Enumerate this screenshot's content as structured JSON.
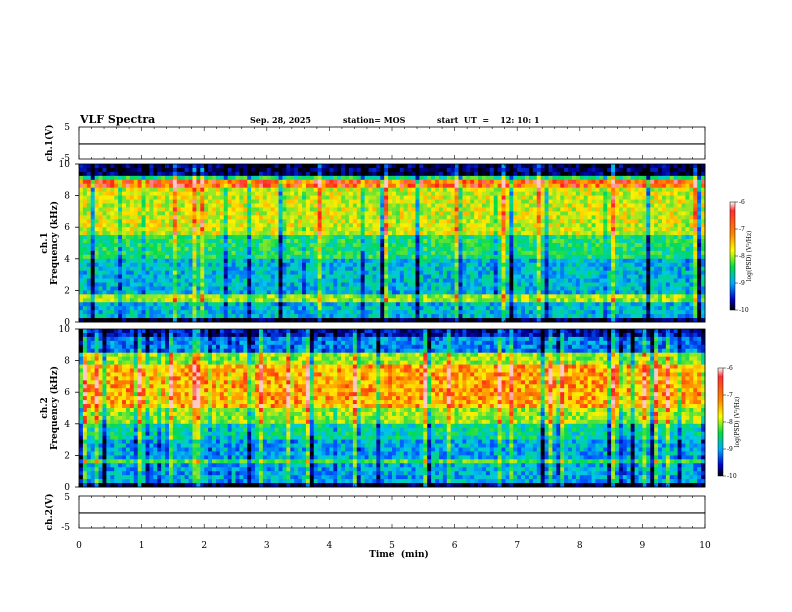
{
  "header": {
    "title": "VLF Spectra",
    "date": "Sep. 28, 2025",
    "station": "station= MOS",
    "start": "start  UT  =    12: 10: 1"
  },
  "colorbar": {
    "label": "log(PSD) (V²/Hz)",
    "ticks": [
      "-6",
      "-7",
      "-8",
      "-9",
      "-10"
    ]
  },
  "chart_data": [
    {
      "type": "line",
      "name": "ch1-voltage",
      "ylabel": "ch.1(V)",
      "ylim": [
        -5,
        5
      ],
      "yticks": [
        "5",
        "-5"
      ],
      "xlim": [
        0,
        10
      ],
      "series": [
        {
          "name": "ch.1",
          "value": -0.3
        }
      ]
    },
    {
      "type": "heatmap",
      "name": "ch1-spectrogram",
      "ylabel": "ch.1\nFrequency (kHz)",
      "ylim": [
        0,
        10
      ],
      "yticks": [
        "0",
        "2",
        "4",
        "6",
        "8",
        "10"
      ],
      "xlim": [
        0,
        10
      ],
      "clim": [
        -10,
        -6
      ],
      "colorbar_label": "log(PSD) (V²/Hz)",
      "description_bands": "green background, red-yellow emission 6–9 kHz, strong line near 8.7 kHz and 1.5 kHz"
    },
    {
      "type": "heatmap",
      "name": "ch2-spectrogram",
      "ylabel": "ch.2\nFrequency (kHz)",
      "ylim": [
        0,
        10
      ],
      "yticks": [
        "0",
        "2",
        "4",
        "6",
        "8",
        "10"
      ],
      "xlim": [
        0,
        10
      ],
      "clim": [
        -10,
        -6
      ],
      "colorbar_label": "log(PSD) (V²/Hz)"
    },
    {
      "type": "line",
      "name": "ch2-voltage",
      "ylabel": "ch.2(V)",
      "ylim": [
        -5,
        5
      ],
      "yticks": [
        "5",
        "-5"
      ],
      "xlim": [
        0,
        10
      ],
      "xticks": [
        "0",
        "1",
        "2",
        "3",
        "4",
        "5",
        "6",
        "7",
        "8",
        "9",
        "10"
      ],
      "xlabel": "Time  (min)",
      "series": [
        {
          "name": "ch.2",
          "value": -0.3
        }
      ]
    }
  ]
}
